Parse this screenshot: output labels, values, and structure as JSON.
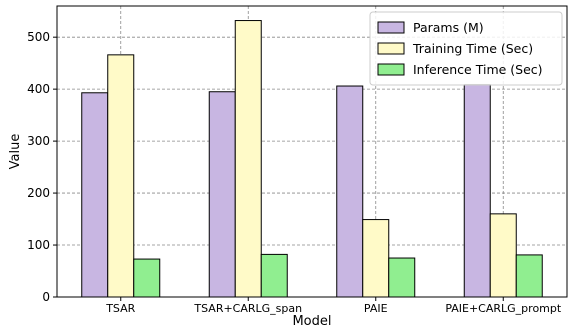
{
  "chart_data": {
    "type": "bar",
    "categories": [
      "TSAR",
      "TSAR+CARLG_span",
      "PAIE",
      "PAIE+CARLG_prompt"
    ],
    "series": [
      {
        "name": "Params (M)",
        "values": [
          393,
          395,
          406,
          409
        ],
        "color": "#c8b6e2"
      },
      {
        "name": "Training Time (Sec)",
        "values": [
          466,
          532,
          149,
          160
        ],
        "color": "#fffac8"
      },
      {
        "name": "Inference Time (Sec)",
        "values": [
          73,
          82,
          75,
          81
        ],
        "color": "#90ee90"
      }
    ],
    "xlabel": "Model",
    "ylabel": "Value",
    "ylim": [
      0,
      560
    ],
    "yticks": [
      0,
      100,
      200,
      300,
      400,
      500
    ],
    "grid": true,
    "legend_position": "top-right"
  }
}
